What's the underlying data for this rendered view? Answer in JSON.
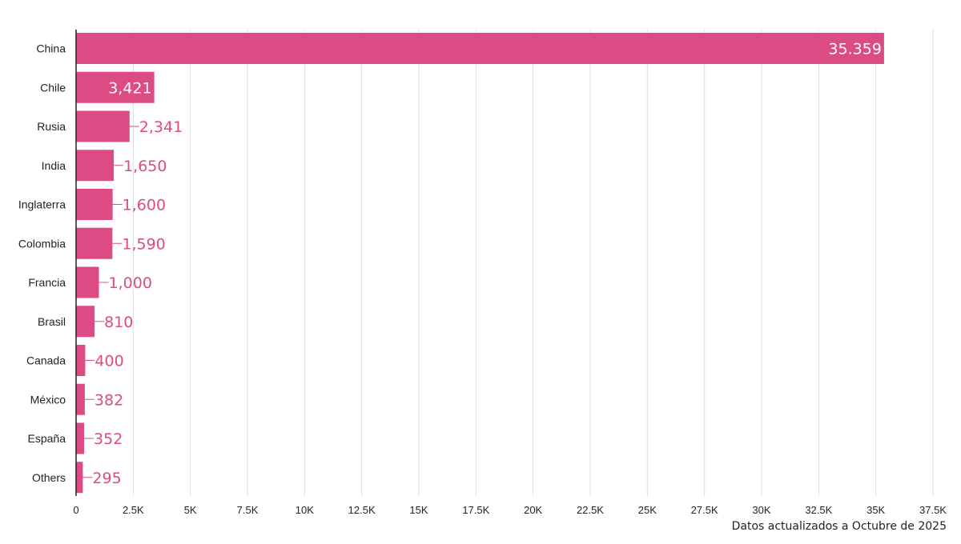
{
  "chart_data": {
    "type": "bar",
    "orientation": "horizontal",
    "categories": [
      "China",
      "Chile",
      "Rusia",
      "India",
      "Inglaterra",
      "Colombia",
      "Francia",
      "Brasil",
      "Canada",
      "México",
      "España",
      "Others"
    ],
    "values": [
      35359,
      3421,
      2341,
      1650,
      1600,
      1590,
      1000,
      810,
      400,
      382,
      352,
      295
    ],
    "value_labels": [
      "35.359",
      "3,421",
      "2,341",
      "1,650",
      "1,600",
      "1,590",
      "1,000",
      "810",
      "400",
      "382",
      "352",
      "295"
    ],
    "title": "",
    "xlabel": "",
    "ylabel": "",
    "xlim": [
      0,
      37500
    ],
    "x_ticks": [
      0,
      2500,
      5000,
      7500,
      10000,
      12500,
      15000,
      17500,
      20000,
      22500,
      25000,
      27500,
      30000,
      32500,
      35000,
      37500
    ],
    "x_tick_labels": [
      "0",
      "2.5K",
      "5K",
      "7.5K",
      "10K",
      "12.5K",
      "15K",
      "17.5K",
      "20K",
      "22.5K",
      "25K",
      "27.5K",
      "30K",
      "32.5K",
      "35K",
      "37.5K"
    ],
    "grid": "vertical",
    "legend": "none"
  },
  "footnote": "Datos actualizados a Octubre de 2025",
  "colors": {
    "bar": "#dd4b84",
    "label_inside": "#ffffff",
    "label_outside": "#dd4b84",
    "grid": "#dddddd",
    "axis": "#222222"
  }
}
